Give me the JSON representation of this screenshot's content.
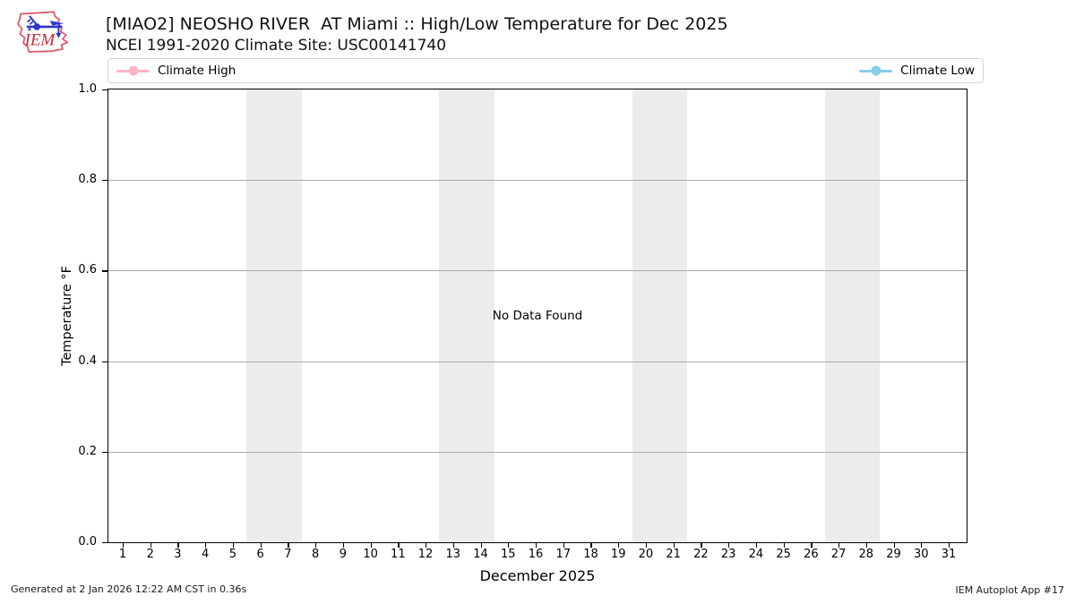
{
  "header": {
    "title": "[MIAO2] NEOSHO RIVER  AT Miami :: High/Low Temperature for Dec 2025",
    "subtitle": "NCEI 1991-2020 Climate Site: USC00141740"
  },
  "logo": {
    "text": "IEM"
  },
  "chart_data": {
    "type": "line",
    "title": "[MIAO2] NEOSHO RIVER  AT Miami :: High/Low Temperature for Dec 2025",
    "subtitle": "NCEI 1991-2020 Climate Site: USC00141740",
    "xlabel": "December 2025",
    "ylabel": "Temperature °F",
    "no_data_message": "No Data Found",
    "series": [
      {
        "name": "Climate High",
        "color": "#ffb6c1",
        "x": [],
        "values": []
      },
      {
        "name": "Climate Low",
        "color": "#87ceeb",
        "x": [],
        "values": []
      }
    ],
    "legend_position": "top, expanded full width",
    "grid": "horizontal only",
    "grid_color": "#aaaaaa",
    "xlim": [
      0.48,
      31.65
    ],
    "ylim": [
      0.0,
      1.0
    ],
    "xticks": [
      1,
      2,
      3,
      4,
      5,
      6,
      7,
      8,
      9,
      10,
      11,
      12,
      13,
      14,
      15,
      16,
      17,
      18,
      19,
      20,
      21,
      22,
      23,
      24,
      25,
      26,
      27,
      28,
      29,
      30,
      31
    ],
    "yticks": [
      {
        "value": 0.0,
        "label": "0.0"
      },
      {
        "value": 0.2,
        "label": "0.2"
      },
      {
        "value": 0.4,
        "label": "0.4"
      },
      {
        "value": 0.6,
        "label": "0.6"
      },
      {
        "value": 0.8,
        "label": "0.8"
      },
      {
        "value": 1.0,
        "label": "1.0"
      }
    ],
    "ygrid_values": [
      0.2,
      0.4,
      0.6,
      0.8
    ],
    "weekend_bands": [
      [
        5.5,
        7.5
      ],
      [
        12.5,
        14.5
      ],
      [
        19.5,
        21.5
      ],
      [
        26.5,
        28.5
      ]
    ],
    "band_color": "#ececec"
  },
  "footer": {
    "generated": "Generated at 2 Jan 2026 12:22 AM CST in 0.36s",
    "app": "IEM Autoplot App #17"
  }
}
